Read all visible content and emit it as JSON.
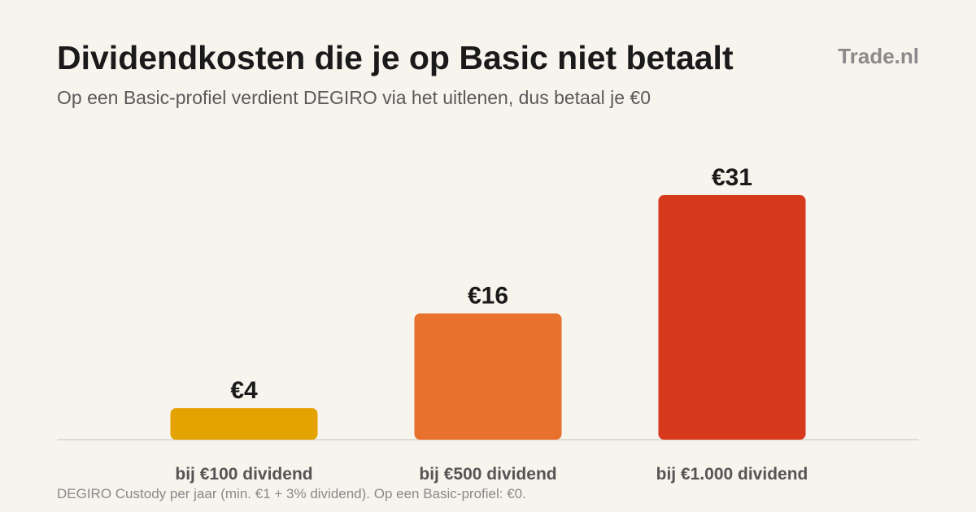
{
  "header": {
    "title": "Dividendkosten die je op Basic niet betaalt",
    "subtitle": "Op een Basic-profiel verdient DEGIRO via het uitlenen, dus betaal je €0",
    "brand": "Trade.nl"
  },
  "footnote": "DEGIRO Custody per jaar (min. €1 + 3% dividend). Op een Basic-profiel: €0.",
  "chart_data": {
    "type": "bar",
    "categories": [
      "bij €100 dividend",
      "bij €500 dividend",
      "bij €1.000 dividend"
    ],
    "values": [
      4,
      16,
      31
    ],
    "value_labels": [
      "€4",
      "€16",
      "€31"
    ],
    "colors": [
      "#e3a200",
      "#e8712b",
      "#d6391b"
    ],
    "title": "Dividendkosten die je op Basic niet betaalt",
    "subtitle": "Op een Basic-profiel verdient DEGIRO via het uitlenen, dus betaal je €0",
    "ylim": [
      0,
      31
    ],
    "grid": false,
    "legend": "none"
  }
}
